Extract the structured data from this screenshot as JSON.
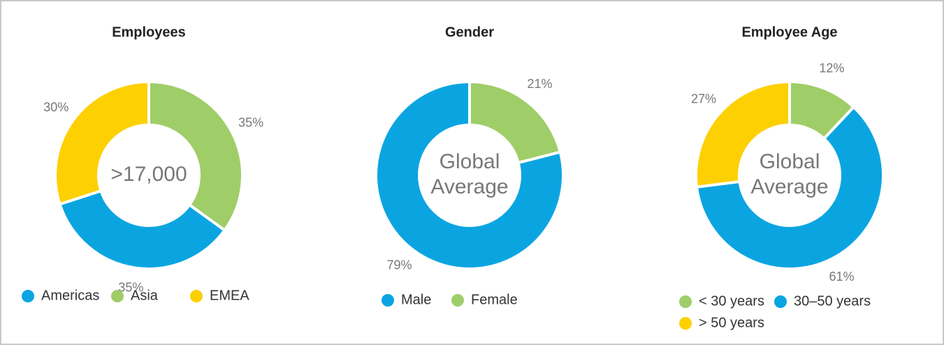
{
  "chart_data": [
    {
      "type": "pie",
      "title": "Employees",
      "center_label": [
        ">17,000"
      ],
      "categories": [
        "Asia",
        "Americas",
        "EMEA"
      ],
      "values": [
        35,
        35,
        30
      ],
      "value_labels": [
        "35%",
        "35%",
        "30%"
      ],
      "colors": [
        "#9fcd68",
        "#0aa5e1",
        "#fdd001"
      ]
    },
    {
      "type": "pie",
      "title": "Gender",
      "center_label": [
        "Global",
        "Average"
      ],
      "categories": [
        "Female",
        "Male"
      ],
      "values": [
        21,
        79
      ],
      "value_labels": [
        "21%",
        "79%"
      ],
      "colors": [
        "#9fcd68",
        "#0aa5e1"
      ]
    },
    {
      "type": "pie",
      "title": "Employee Age",
      "center_label": [
        "Global",
        "Average"
      ],
      "categories": [
        "< 30 years",
        "30–50 years",
        "> 50 years"
      ],
      "values": [
        12,
        61,
        27
      ],
      "value_labels": [
        "12%",
        "61%",
        "27%"
      ],
      "colors": [
        "#9fcd68",
        "#0aa5e1",
        "#fdd001"
      ]
    }
  ]
}
